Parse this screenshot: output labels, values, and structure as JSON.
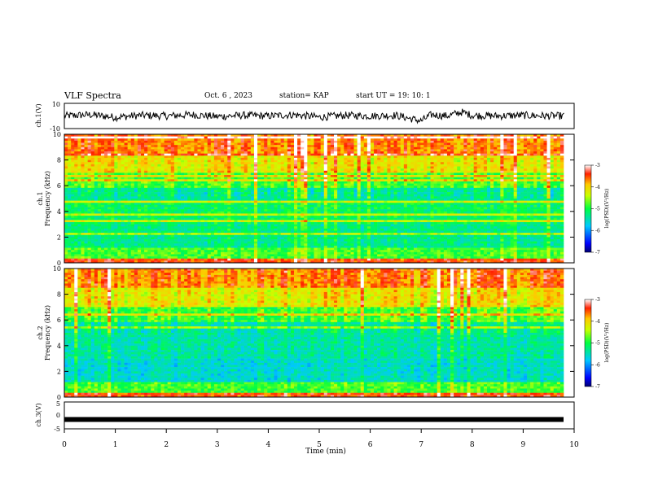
{
  "header": {
    "title": "VLF Spectra",
    "date": "Oct. 6  , 2023",
    "station": "station= KAP",
    "start": "start  UT  =   19: 10: 1"
  },
  "chart_data": [
    {
      "id": "ch1-waveform",
      "type": "line",
      "ylabel": "ch.1(V)",
      "ylim": [
        -10,
        10
      ],
      "yticks": [
        "10",
        "-10"
      ],
      "xlim": [
        0,
        10
      ],
      "description_values": "noise waveform approx. amplitude -4 to 4 V with larger excursions near 7 min and 7.8 min",
      "approx_x": [
        0,
        0.5,
        1,
        1.5,
        2,
        2.5,
        3,
        3.5,
        4,
        4.5,
        5,
        5.5,
        6,
        6.5,
        7,
        7.2,
        7.5,
        7.8,
        8,
        8.5,
        9,
        9.5,
        9.8
      ],
      "approx_y": [
        0,
        1,
        -1,
        0.5,
        0,
        1,
        -0.5,
        0.5,
        0,
        1,
        -1,
        0.5,
        0,
        0.5,
        -4,
        1,
        0,
        3,
        0.5,
        0,
        0.5,
        0,
        0
      ]
    },
    {
      "id": "ch1-spectrogram",
      "type": "heatmap",
      "ylabel": "ch.1\nFrequency  (kHz)",
      "ylim": [
        0,
        10
      ],
      "yticks": [
        "0",
        "2",
        "4",
        "6",
        "8",
        "10"
      ],
      "xlim": [
        0,
        10
      ],
      "colorbar": {
        "label": "log(PSD)(V²/Hz)",
        "range": [
          -7,
          -3
        ],
        "ticks": [
          "-3",
          "-4",
          "-5",
          "-6",
          "-7"
        ]
      }
    },
    {
      "id": "ch2-spectrogram",
      "type": "heatmap",
      "ylabel": "ch.2\nFrequency  (kHz)",
      "ylim": [
        0,
        10
      ],
      "yticks": [
        "0",
        "2",
        "4",
        "6",
        "8",
        "10"
      ],
      "xlim": [
        0,
        10
      ],
      "colorbar": {
        "label": "log(PSD)(V²/Hz)",
        "range": [
          -7,
          -3
        ],
        "ticks": [
          "-3",
          "-4",
          "-5",
          "-6",
          "-7"
        ]
      }
    },
    {
      "id": "ch3-waveform",
      "type": "line",
      "ylabel": "ch.3(V)",
      "ylim": [
        -5,
        5
      ],
      "yticks": [
        "5",
        "0",
        "-5"
      ],
      "xlim": [
        0,
        10
      ],
      "approx_value": -1.5,
      "xlabel": "Time  (min)",
      "xticks": [
        "0",
        "1",
        "2",
        "3",
        "4",
        "5",
        "6",
        "7",
        "8",
        "9",
        "10"
      ]
    }
  ]
}
